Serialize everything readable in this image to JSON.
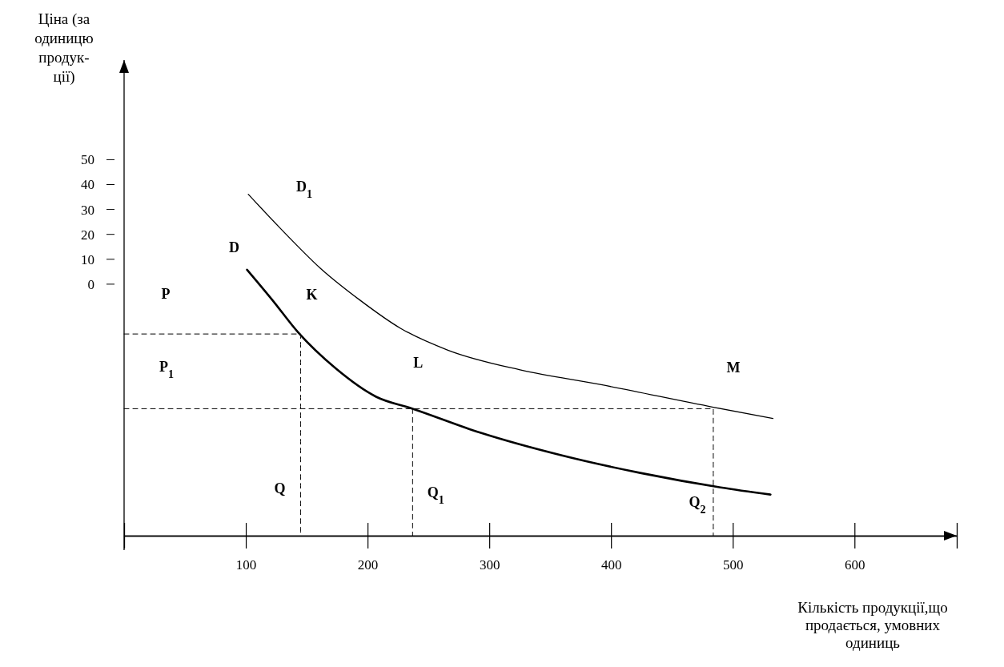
{
  "chart_data": {
    "type": "line",
    "xlabel": "Кількість продукції,що продається, умовних одиниць",
    "ylabel": "Ціна (за одиницю продук-ції)",
    "xlim": [
      0,
      684
    ],
    "ylim": [
      -101,
      90
    ],
    "xticks": [
      100,
      200,
      300,
      400,
      500,
      600
    ],
    "yticks": [
      0,
      10,
      20,
      30,
      40,
      50
    ],
    "grid": false,
    "marker": "none",
    "series": [
      {
        "name": "D",
        "color": "#000000",
        "line_style": "solid",
        "x": [
          101,
          122,
          143,
          174,
          207,
          237,
          293,
          359,
          424,
          490,
          531
        ],
        "values": [
          5.8,
          -6.5,
          -19.4,
          -33.9,
          -45.2,
          -50,
          -59.7,
          -68.7,
          -75.8,
          -81.6,
          -84.5
        ]
      },
      {
        "name": "D$_{1}$",
        "color": "#000000",
        "line_style": "solid",
        "x": [
          102,
          128,
          161,
          194,
          227,
          266,
          326,
          391,
          484,
          533
        ],
        "values": [
          36.1,
          22.6,
          6.5,
          -6.5,
          -17.7,
          -26.5,
          -34.5,
          -40.3,
          -49.4,
          -53.9
        ]
      },
      {
        "color": "#000000",
        "line_style": "dashed",
        "x": [
          0,
          145,
          145
        ],
        "values": [
          -20,
          -20,
          -101
        ]
      },
      {
        "color": "#000000",
        "line_style": "dashed",
        "x": [
          0,
          484,
          484
        ],
        "values": [
          -50,
          -50,
          -101
        ]
      },
      {
        "color": "#000000",
        "line_style": "dashed",
        "x": [
          237,
          237
        ],
        "values": [
          -50,
          -101
        ]
      }
    ],
    "annotations": [
      "P",
      "P$_{1}$",
      {
        "text": "K",
        "x": 145,
        "y": -20
      },
      {
        "text": "L",
        "x": 237,
        "y": -50
      },
      {
        "text": "M",
        "x": 484,
        "y": -50
      },
      {
        "text": "Q",
        "x": 145,
        "y": -101
      },
      {
        "text": "Q$_{1}$",
        "x": 237,
        "y": -101
      },
      {
        "text": "Q$_{2}$",
        "x": 484,
        "y": -101
      }
    ]
  }
}
